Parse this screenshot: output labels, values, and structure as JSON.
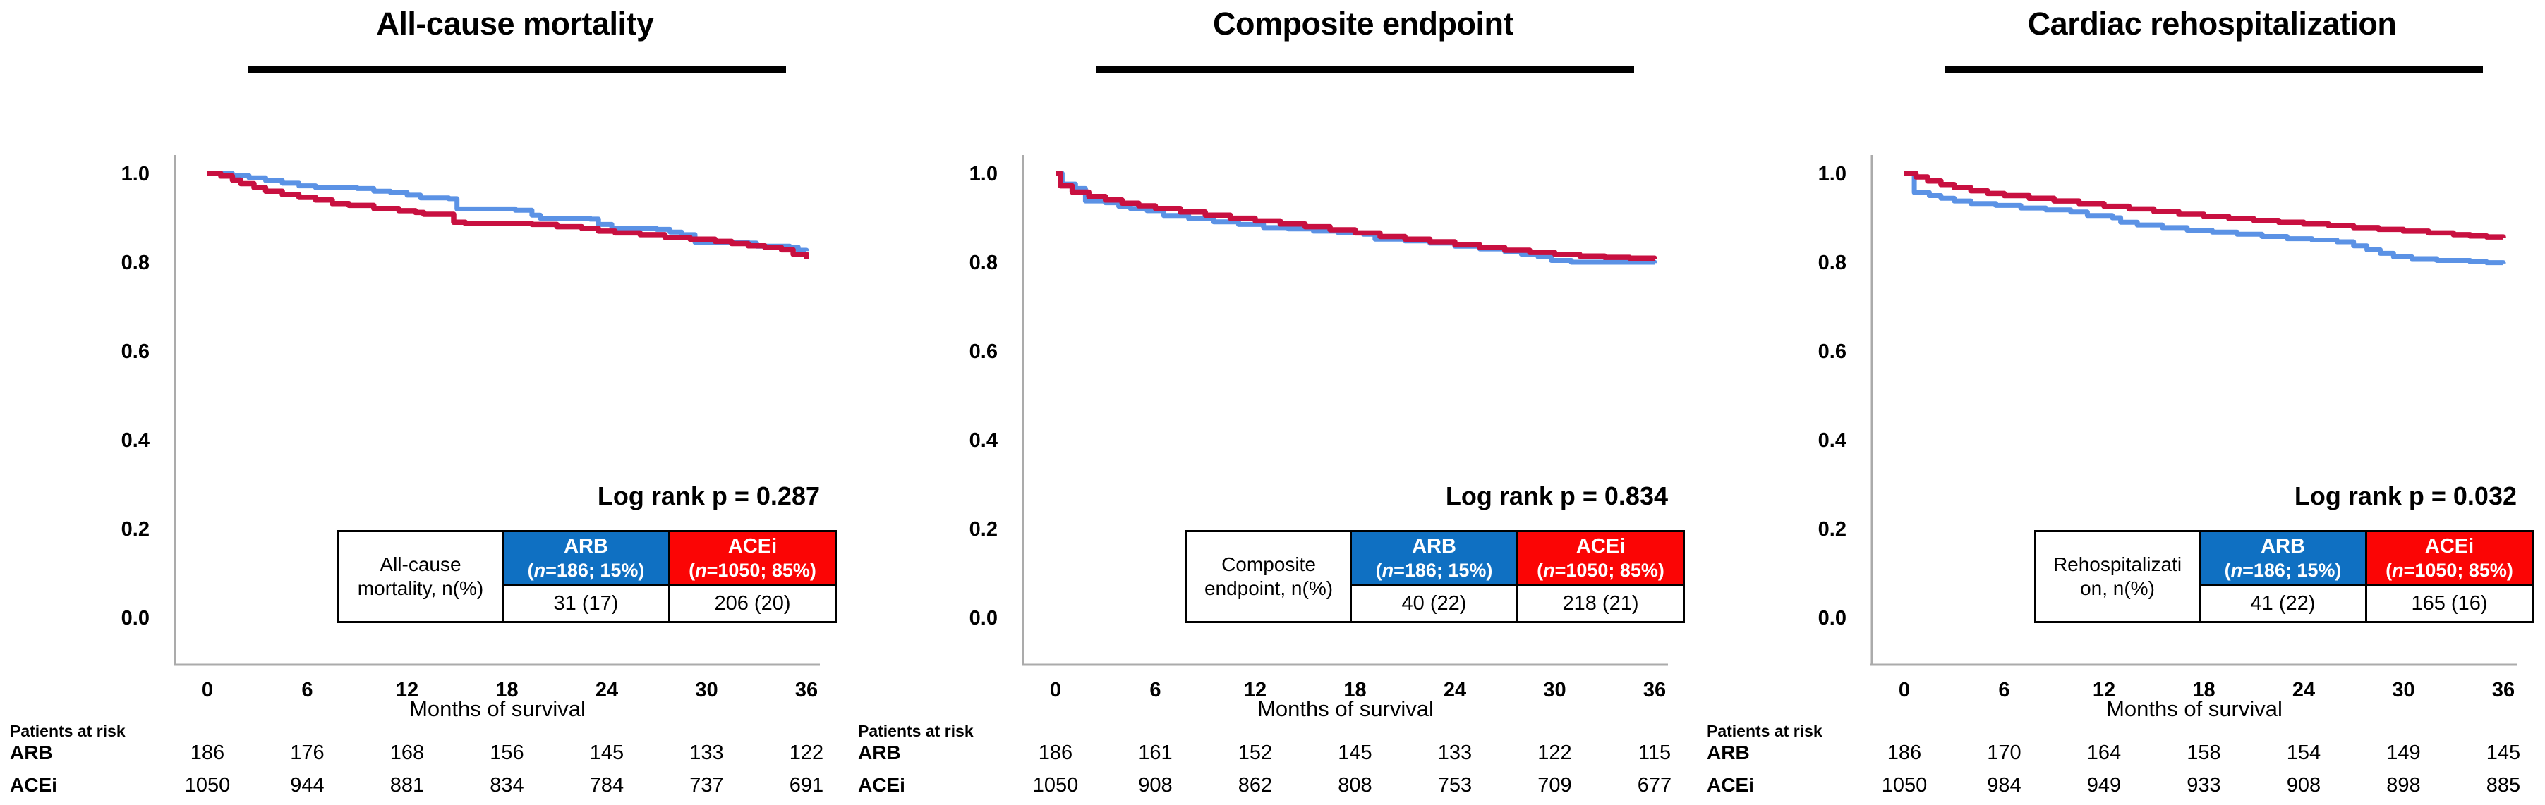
{
  "figure": {
    "background": "#ffffff"
  },
  "colors": {
    "arb_curve": "#5B92E5",
    "acei_curve": "#C81040",
    "arb_header_bg": "#0F70C2",
    "acei_header_bg": "#FB0505",
    "axis_line": "#ABABAB",
    "text": "#000000"
  },
  "axes": {
    "yticks": [
      {
        "label": "1.0",
        "v": 1.0
      },
      {
        "label": "0.8",
        "v": 0.8
      },
      {
        "label": "0.6",
        "v": 0.6
      },
      {
        "label": "0.4",
        "v": 0.4
      },
      {
        "label": "0.2",
        "v": 0.2
      },
      {
        "label": "0.0",
        "v": 0.0
      }
    ],
    "xticks": [
      {
        "label": "0",
        "m": 0
      },
      {
        "label": "6",
        "m": 6
      },
      {
        "label": "12",
        "m": 12
      },
      {
        "label": "18",
        "m": 18
      },
      {
        "label": "24",
        "m": 24
      },
      {
        "label": "30",
        "m": 30
      },
      {
        "label": "36",
        "m": 36
      }
    ]
  },
  "panels": [
    {
      "title": "All-cause mortality",
      "logrank": "Log rank p = 0.287",
      "xlabel": "Months of survival",
      "table": {
        "label_line1": "All-cause",
        "label_line2": "mortality, n(%)",
        "cols": [
          {
            "name": "ARB",
            "sub_open": "(",
            "sub_n": "n",
            "sub_rest": "=186; 15%)"
          },
          {
            "name": "ACEi",
            "sub_open": "(",
            "sub_n": "n",
            "sub_rest": "=1050; 85%)"
          }
        ],
        "values": [
          "31 (17)",
          "206 (20)"
        ]
      },
      "risk": {
        "header": "Patients at risk",
        "rows": [
          {
            "label": "ARB",
            "counts": [
              186,
              176,
              168,
              156,
              145,
              133,
              122
            ]
          },
          {
            "label": "ACEi",
            "counts": [
              1050,
              944,
              881,
              834,
              784,
              737,
              691
            ]
          }
        ]
      }
    },
    {
      "title": "Composite endpoint",
      "logrank": "Log rank p = 0.834",
      "xlabel": "Months of survival",
      "table": {
        "label_line1": "Composite",
        "label_line2": "endpoint, n(%)",
        "cols": [
          {
            "name": "ARB",
            "sub_open": "(",
            "sub_n": "n",
            "sub_rest": "=186; 15%)"
          },
          {
            "name": "ACEi",
            "sub_open": "(",
            "sub_n": "n",
            "sub_rest": "=1050; 85%)"
          }
        ],
        "values": [
          "40 (22)",
          "218 (21)"
        ]
      },
      "risk": {
        "header": "Patients at risk",
        "rows": [
          {
            "label": "ARB",
            "counts": [
              186,
              161,
              152,
              145,
              133,
              122,
              115
            ]
          },
          {
            "label": "ACEi",
            "counts": [
              1050,
              908,
              862,
              808,
              753,
              709,
              677
            ]
          }
        ]
      }
    },
    {
      "title": "Cardiac rehospitalization",
      "logrank": "Log rank p = 0.032",
      "xlabel": "Months of survival",
      "table": {
        "label_line1": "Rehospitalizati",
        "label_line2": "on, n(%)",
        "cols": [
          {
            "name": "ARB",
            "sub_open": "(",
            "sub_n": "n",
            "sub_rest": "=186; 15%)"
          },
          {
            "name": "ACEi",
            "sub_open": "(",
            "sub_n": "n",
            "sub_rest": "=1050; 85%)"
          }
        ],
        "values": [
          "41 (22)",
          "165 (16)"
        ]
      },
      "risk": {
        "header": "Patients at risk",
        "rows": [
          {
            "label": "ARB",
            "counts": [
              186,
              170,
              164,
              158,
              154,
              149,
              145
            ]
          },
          {
            "label": "ACEi",
            "counts": [
              1050,
              984,
              949,
              933,
              908,
              898,
              885
            ]
          }
        ]
      }
    }
  ],
  "chart_data": [
    {
      "type": "line",
      "subtype": "kaplan-meier-step",
      "title": "All-cause mortality",
      "xlabel": "Months of survival",
      "xlim": [
        0,
        36
      ],
      "ylim": [
        0.0,
        1.0
      ],
      "legend_position": "none",
      "grid": false,
      "series": [
        {
          "name": "ARB",
          "color": "#5B92E5",
          "points": [
            [
              0,
              1.0
            ],
            [
              1.5,
              0.995
            ],
            [
              2.5,
              0.99
            ],
            [
              3.5,
              0.984
            ],
            [
              4.5,
              0.978
            ],
            [
              5.5,
              0.972
            ],
            [
              6.5,
              0.968
            ],
            [
              9,
              0.966
            ],
            [
              10,
              0.96
            ],
            [
              11,
              0.957
            ],
            [
              12,
              0.951
            ],
            [
              12.8,
              0.945
            ],
            [
              14.5,
              0.943
            ],
            [
              15,
              0.92
            ],
            [
              18.5,
              0.917
            ],
            [
              19.5,
              0.906
            ],
            [
              20,
              0.899
            ],
            [
              23,
              0.897
            ],
            [
              23.5,
              0.885
            ],
            [
              24.3,
              0.876
            ],
            [
              27,
              0.874
            ],
            [
              27.8,
              0.868
            ],
            [
              28.5,
              0.862
            ],
            [
              29.3,
              0.845
            ],
            [
              32.5,
              0.843
            ],
            [
              33,
              0.836
            ],
            [
              35,
              0.834
            ],
            [
              35.5,
              0.827
            ],
            [
              36,
              0.825
            ]
          ]
        },
        {
          "name": "ACEi",
          "color": "#C81040",
          "points": [
            [
              0,
              1.0
            ],
            [
              0.8,
              0.994
            ],
            [
              1.5,
              0.985
            ],
            [
              2,
              0.977
            ],
            [
              2.8,
              0.968
            ],
            [
              3.5,
              0.96
            ],
            [
              4.5,
              0.952
            ],
            [
              5.5,
              0.946
            ],
            [
              6.5,
              0.94
            ],
            [
              7.5,
              0.932
            ],
            [
              8.5,
              0.928
            ],
            [
              10,
              0.921
            ],
            [
              11.5,
              0.916
            ],
            [
              12.5,
              0.912
            ],
            [
              13,
              0.908
            ],
            [
              14.8,
              0.89
            ],
            [
              15.5,
              0.887
            ],
            [
              19.5,
              0.885
            ],
            [
              21,
              0.88
            ],
            [
              22.5,
              0.876
            ],
            [
              23.5,
              0.87
            ],
            [
              24.5,
              0.866
            ],
            [
              26,
              0.862
            ],
            [
              27.5,
              0.856
            ],
            [
              29,
              0.852
            ],
            [
              30.5,
              0.847
            ],
            [
              31.5,
              0.842
            ],
            [
              32.5,
              0.837
            ],
            [
              33.5,
              0.833
            ],
            [
              34.5,
              0.828
            ],
            [
              35.2,
              0.818
            ],
            [
              36,
              0.808
            ]
          ]
        }
      ]
    },
    {
      "type": "line",
      "subtype": "kaplan-meier-step",
      "title": "Composite endpoint",
      "xlabel": "Months of survival",
      "xlim": [
        0,
        36
      ],
      "ylim": [
        0.0,
        1.0
      ],
      "legend_position": "none",
      "grid": false,
      "series": [
        {
          "name": "ARB",
          "color": "#5B92E5",
          "points": [
            [
              0,
              1.0
            ],
            [
              0.4,
              0.976
            ],
            [
              1.2,
              0.966
            ],
            [
              1.8,
              0.938
            ],
            [
              3,
              0.934
            ],
            [
              3.8,
              0.926
            ],
            [
              4.5,
              0.921
            ],
            [
              5.5,
              0.916
            ],
            [
              6.5,
              0.905
            ],
            [
              8,
              0.898
            ],
            [
              9.5,
              0.891
            ],
            [
              11,
              0.885
            ],
            [
              12.5,
              0.878
            ],
            [
              14,
              0.875
            ],
            [
              15.5,
              0.87
            ],
            [
              17,
              0.866
            ],
            [
              18.5,
              0.863
            ],
            [
              19.2,
              0.852
            ],
            [
              21,
              0.848
            ],
            [
              22.5,
              0.843
            ],
            [
              24,
              0.836
            ],
            [
              25.5,
              0.83
            ],
            [
              27,
              0.824
            ],
            [
              28,
              0.818
            ],
            [
              29,
              0.812
            ],
            [
              29.8,
              0.804
            ],
            [
              31,
              0.8
            ],
            [
              36,
              0.798
            ]
          ]
        },
        {
          "name": "ACEi",
          "color": "#C81040",
          "points": [
            [
              0,
              1.0
            ],
            [
              0.3,
              0.972
            ],
            [
              1,
              0.958
            ],
            [
              2,
              0.948
            ],
            [
              3,
              0.94
            ],
            [
              4,
              0.933
            ],
            [
              5,
              0.927
            ],
            [
              6,
              0.921
            ],
            [
              7.5,
              0.913
            ],
            [
              9,
              0.906
            ],
            [
              10.5,
              0.899
            ],
            [
              12,
              0.893
            ],
            [
              13.5,
              0.886
            ],
            [
              15,
              0.88
            ],
            [
              16.5,
              0.873
            ],
            [
              18,
              0.866
            ],
            [
              19.5,
              0.858
            ],
            [
              21,
              0.852
            ],
            [
              22.5,
              0.846
            ],
            [
              24,
              0.839
            ],
            [
              25.5,
              0.833
            ],
            [
              27,
              0.827
            ],
            [
              28.5,
              0.822
            ],
            [
              30,
              0.818
            ],
            [
              31.5,
              0.814
            ],
            [
              33,
              0.811
            ],
            [
              34.5,
              0.809
            ],
            [
              36,
              0.808
            ]
          ]
        }
      ]
    },
    {
      "type": "line",
      "subtype": "kaplan-meier-step",
      "title": "Cardiac rehospitalization",
      "xlabel": "Months of survival",
      "xlim": [
        0,
        36
      ],
      "ylim": [
        0.0,
        1.0
      ],
      "legend_position": "none",
      "grid": false,
      "series": [
        {
          "name": "ARB",
          "color": "#5B92E5",
          "points": [
            [
              0,
              1.0
            ],
            [
              0.6,
              0.957
            ],
            [
              1.5,
              0.95
            ],
            [
              2.2,
              0.944
            ],
            [
              3,
              0.938
            ],
            [
              4,
              0.932
            ],
            [
              5.5,
              0.928
            ],
            [
              7,
              0.922
            ],
            [
              8.5,
              0.918
            ],
            [
              10,
              0.913
            ],
            [
              11,
              0.905
            ],
            [
              12.5,
              0.9
            ],
            [
              13,
              0.89
            ],
            [
              14,
              0.884
            ],
            [
              15.5,
              0.878
            ],
            [
              17,
              0.872
            ],
            [
              18.5,
              0.868
            ],
            [
              20,
              0.863
            ],
            [
              21.5,
              0.858
            ],
            [
              23,
              0.853
            ],
            [
              24.5,
              0.85
            ],
            [
              26,
              0.846
            ],
            [
              27,
              0.837
            ],
            [
              27.8,
              0.828
            ],
            [
              28.6,
              0.82
            ],
            [
              29.4,
              0.812
            ],
            [
              30.5,
              0.808
            ],
            [
              32,
              0.804
            ],
            [
              34,
              0.801
            ],
            [
              35,
              0.799
            ],
            [
              36,
              0.797
            ]
          ]
        },
        {
          "name": "ACEi",
          "color": "#C81040",
          "points": [
            [
              0,
              1.0
            ],
            [
              0.7,
              0.992
            ],
            [
              1.4,
              0.983
            ],
            [
              2.2,
              0.975
            ],
            [
              3,
              0.968
            ],
            [
              4,
              0.961
            ],
            [
              5,
              0.955
            ],
            [
              6,
              0.95
            ],
            [
              7.5,
              0.944
            ],
            [
              9,
              0.938
            ],
            [
              10.5,
              0.932
            ],
            [
              12,
              0.926
            ],
            [
              13.5,
              0.92
            ],
            [
              15,
              0.914
            ],
            [
              16.5,
              0.908
            ],
            [
              18,
              0.903
            ],
            [
              19.5,
              0.898
            ],
            [
              21,
              0.894
            ],
            [
              22.5,
              0.89
            ],
            [
              24,
              0.886
            ],
            [
              25.5,
              0.882
            ],
            [
              27,
              0.878
            ],
            [
              28.5,
              0.874
            ],
            [
              30,
              0.87
            ],
            [
              31.5,
              0.866
            ],
            [
              33,
              0.862
            ],
            [
              34,
              0.859
            ],
            [
              35,
              0.857
            ],
            [
              36,
              0.855
            ]
          ]
        }
      ]
    }
  ]
}
